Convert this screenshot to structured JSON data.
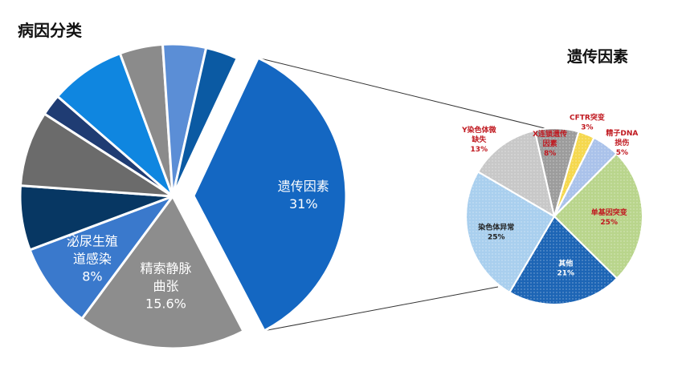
{
  "chart_data": [
    {
      "type": "pie",
      "title": "病因分类",
      "slices": [
        {
          "label_lines": [
            "遗传因素",
            "31%"
          ],
          "value": 31,
          "color": "#1467c2",
          "exploded": true
        },
        {
          "label_lines": [
            "精索静脉",
            "曲张",
            "15.6%"
          ],
          "value": 15.6,
          "color": "#8d8d8d"
        },
        {
          "label_lines": [
            "泌尿生殖",
            "道感染",
            "8%"
          ],
          "value": 8,
          "color": "#3a79cc"
        },
        {
          "label_lines": [],
          "value": 6,
          "color": "#073763"
        },
        {
          "label_lines": [],
          "value": 7,
          "color": "#6b6b6b"
        },
        {
          "label_lines": [],
          "value": 2,
          "color": "#1f3c73"
        },
        {
          "label_lines": [],
          "value": 7,
          "color": "#0f86e0"
        },
        {
          "label_lines": [],
          "value": 4,
          "color": "#8b8b8b"
        },
        {
          "label_lines": [],
          "value": 4,
          "color": "#5b8ed6"
        },
        {
          "label_lines": [],
          "value": 3,
          "color": "#0b5aa3"
        }
      ]
    },
    {
      "type": "pie",
      "title": "遗传因素",
      "slices": [
        {
          "label_lines": [
            "CFTR突变",
            "3%"
          ],
          "value": 3,
          "color": "#f5d84e"
        },
        {
          "label_lines": [
            "精子DNA",
            "损伤",
            "5%"
          ],
          "value": 5,
          "color": "#aac2ea"
        },
        {
          "label_lines": [
            "单基因突变",
            "25%"
          ],
          "value": 25,
          "color": "#b9d58c"
        },
        {
          "label_lines": [
            "其他",
            "21%"
          ],
          "value": 21,
          "color": "#1d65b5"
        },
        {
          "label_lines": [
            "染色体异常",
            "25%"
          ],
          "value": 25,
          "color": "#a9cfee"
        },
        {
          "label_lines": [
            "Y染色体微",
            "缺失",
            "13%"
          ],
          "value": 13,
          "color": "#c8c8c8"
        },
        {
          "label_lines": [
            "X连锁遗传",
            "因素",
            "8%"
          ],
          "value": 8,
          "color": "#9c9c9c"
        }
      ]
    }
  ],
  "colors": {
    "label_red": "#c0181f",
    "label_dark": "#222222",
    "label_light": "#ffffff",
    "connector": "#333333"
  }
}
